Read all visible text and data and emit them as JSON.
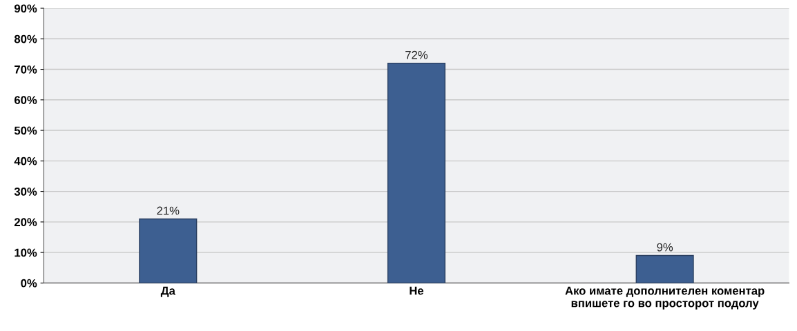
{
  "chart_data": {
    "type": "bar",
    "categories": [
      "Да",
      "Не",
      "Ако имате дополнителен коментар\nвпишете го во просторот подолу"
    ],
    "values": [
      21,
      72,
      9
    ],
    "value_labels": [
      "21%",
      "72%",
      "9%"
    ],
    "color": "#3d5f91",
    "ylim": [
      0,
      90
    ],
    "yticks": [
      {
        "value": 0,
        "label": "0%"
      },
      {
        "value": 10,
        "label": "10%"
      },
      {
        "value": 20,
        "label": "20%"
      },
      {
        "value": 30,
        "label": "30%"
      },
      {
        "value": 40,
        "label": "40%"
      },
      {
        "value": 50,
        "label": "50%"
      },
      {
        "value": 60,
        "label": "60%"
      },
      {
        "value": 70,
        "label": "70%"
      },
      {
        "value": 80,
        "label": "80%"
      },
      {
        "value": 90,
        "label": "90%"
      }
    ],
    "grid": "y"
  }
}
